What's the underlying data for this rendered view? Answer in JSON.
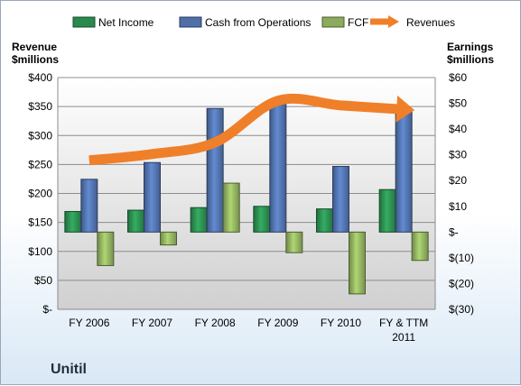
{
  "chart_data": {
    "type": "bar",
    "footer_title": "Unitil",
    "categories": [
      [
        "FY 2006"
      ],
      [
        "FY 2007"
      ],
      [
        "FY 2008"
      ],
      [
        "FY 2009"
      ],
      [
        "FY 2010"
      ],
      [
        "FY & TTM",
        "2011"
      ]
    ],
    "left_axis": {
      "label_lines": [
        "Revenue",
        "$millions"
      ],
      "range": [
        0,
        400
      ],
      "ticks": [
        0,
        50,
        100,
        150,
        200,
        250,
        300,
        350,
        400
      ],
      "tick_labels": [
        "$-",
        "$50",
        "$100",
        "$150",
        "$200",
        "$250",
        "$300",
        "$350",
        "$400"
      ]
    },
    "right_axis": {
      "label_lines": [
        "Earnings",
        "$millions"
      ],
      "range": [
        -30,
        60
      ],
      "ticks": [
        -30,
        -20,
        -10,
        0,
        10,
        20,
        30,
        40,
        50,
        60
      ],
      "tick_labels": [
        "$(30)",
        "$(20)",
        "$(10)",
        "$-",
        "$10",
        "$20",
        "$30",
        "$40",
        "$50",
        "$60"
      ]
    },
    "series": [
      {
        "name": "Net Income",
        "axis": "right",
        "kind": "bar",
        "color": "#2a8a4e",
        "values": [
          8,
          8.5,
          9.5,
          10,
          9,
          16.5
        ]
      },
      {
        "name": "Cash from Operations",
        "axis": "right",
        "kind": "bar",
        "color": "#4f6fa8",
        "values": [
          20.5,
          27,
          48,
          51,
          25.5,
          46.5
        ]
      },
      {
        "name": "FCF",
        "axis": "right",
        "kind": "bar",
        "color": "#8cab5c",
        "values": [
          -13,
          -5,
          19,
          -8,
          -24,
          -11
        ]
      },
      {
        "name": "Revenues",
        "axis": "left",
        "kind": "line",
        "color": "#f07f2a",
        "values": [
          257,
          268,
          288,
          360,
          352,
          345
        ]
      }
    ],
    "legend_position": "top",
    "grid": true
  }
}
